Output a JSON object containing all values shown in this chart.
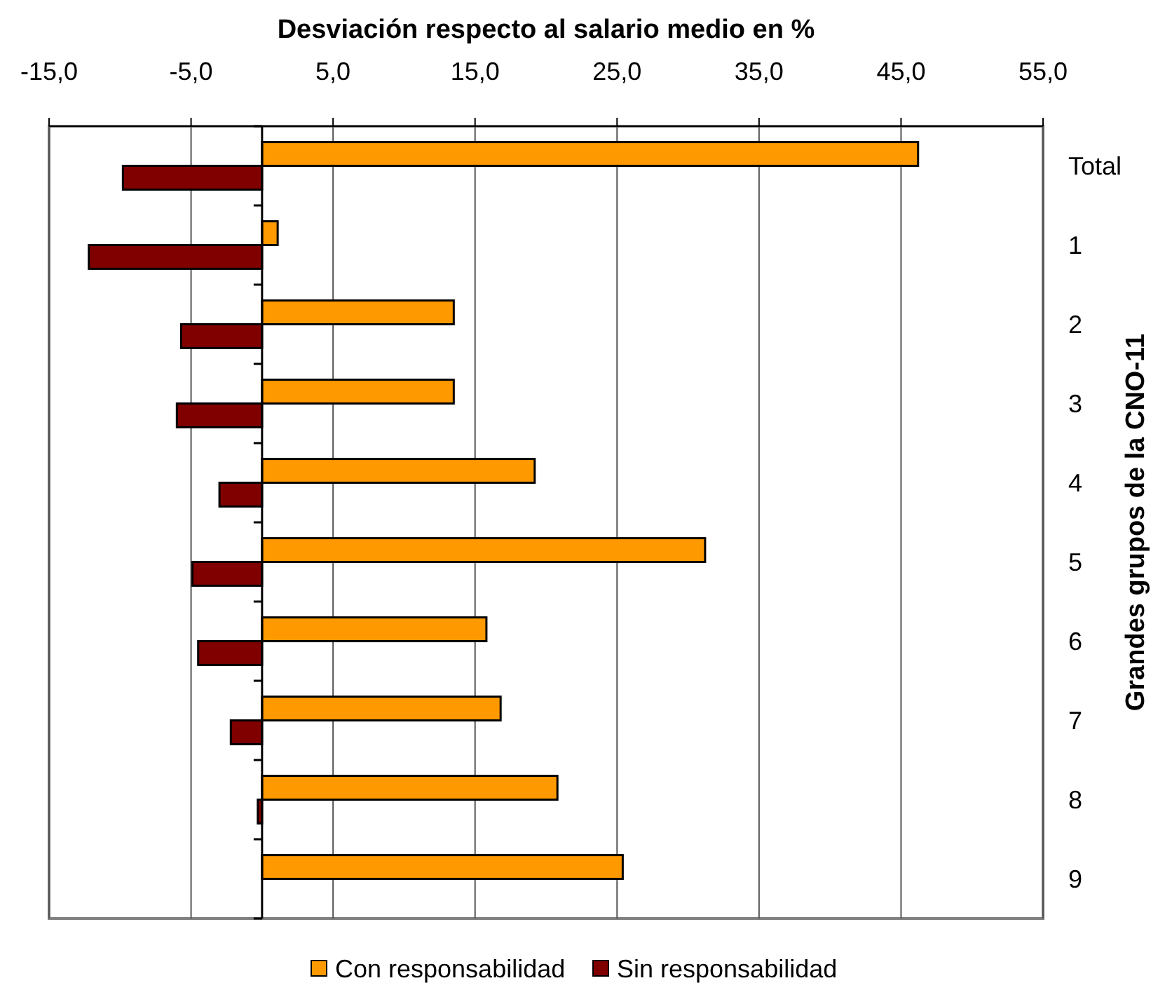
{
  "chart_data": {
    "type": "bar",
    "orientation": "horizontal",
    "xlabel": "Desviación respecto al salario medio en %",
    "ylabel": "Grandes grupos de la CNO-11",
    "categories": [
      "Total",
      "1",
      "2",
      "3",
      "4",
      "5",
      "6",
      "7",
      "8",
      "9"
    ],
    "series": [
      {
        "name": "Con responsabilidad",
        "color": "#ff9900",
        "values": [
          46.2,
          1.1,
          13.5,
          13.5,
          19.2,
          31.2,
          15.8,
          16.8,
          20.8,
          25.4
        ]
      },
      {
        "name": "Sin responsabilidad",
        "color": "#800000",
        "values": [
          -9.8,
          -12.2,
          -5.7,
          -6.0,
          -3.0,
          -4.9,
          -4.5,
          -2.2,
          -0.3,
          null
        ]
      }
    ],
    "xlim": [
      -15,
      55
    ],
    "xticks": [
      {
        "value": -15,
        "label": "-15,0"
      },
      {
        "value": -5,
        "label": "-5,0"
      },
      {
        "value": 5,
        "label": "5,0"
      },
      {
        "value": 15,
        "label": "15,0"
      },
      {
        "value": 25,
        "label": "25,0"
      },
      {
        "value": 35,
        "label": "35,0"
      },
      {
        "value": 45,
        "label": "45,0"
      },
      {
        "value": 55,
        "label": "55,0"
      }
    ],
    "grid": "x",
    "legend": "bottom"
  }
}
